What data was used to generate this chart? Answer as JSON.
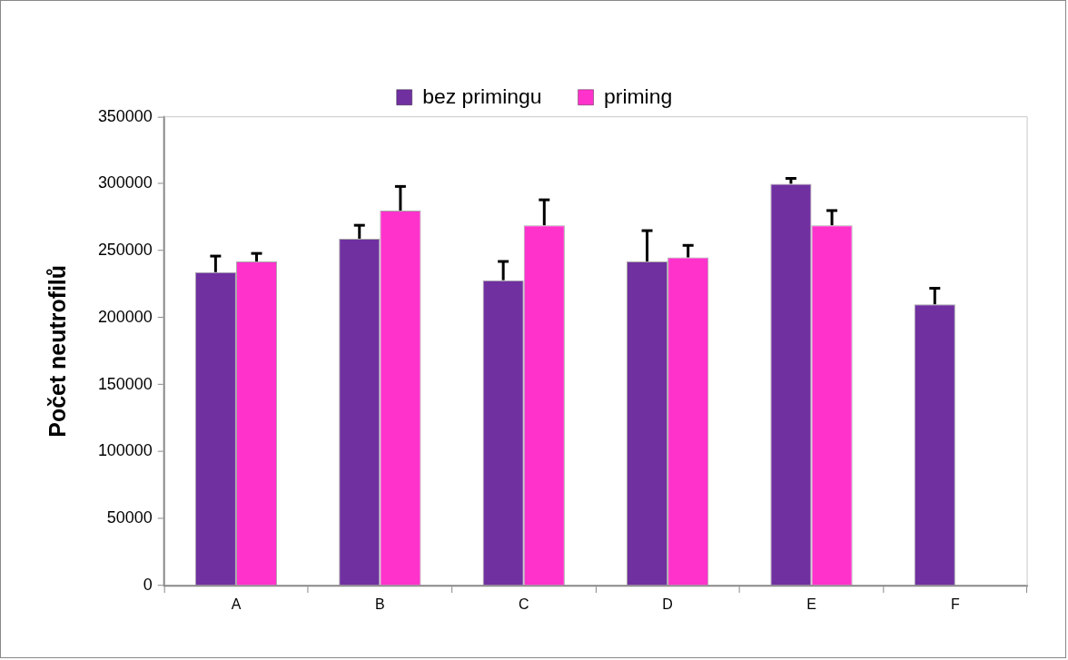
{
  "chart_data": {
    "type": "bar",
    "ylabel": "Počet neutrofilů",
    "categories": [
      "A",
      "B",
      "C",
      "D",
      "E",
      "F"
    ],
    "series": [
      {
        "name": "bez primingu",
        "color": "#7030a0",
        "values": [
          234000,
          259000,
          228000,
          242000,
          300000,
          210000
        ],
        "errors": [
          [
            234000,
            246000
          ],
          [
            259000,
            269000
          ],
          [
            228000,
            242000
          ],
          [
            242000,
            265000
          ],
          [
            300000,
            304000
          ],
          [
            210000,
            222000
          ]
        ]
      },
      {
        "name": "priming",
        "color": "#ff33cc",
        "values": [
          242000,
          280000,
          269000,
          245000,
          269000,
          null
        ],
        "errors": [
          [
            242000,
            248000
          ],
          [
            280000,
            298000
          ],
          [
            269000,
            288000
          ],
          [
            245000,
            254000
          ],
          [
            269000,
            280000
          ],
          null
        ]
      }
    ],
    "ylim": [
      0,
      350000
    ],
    "yticks": [
      0,
      50000,
      100000,
      150000,
      200000,
      250000,
      300000,
      350000
    ],
    "grid": false,
    "legend": "top"
  }
}
